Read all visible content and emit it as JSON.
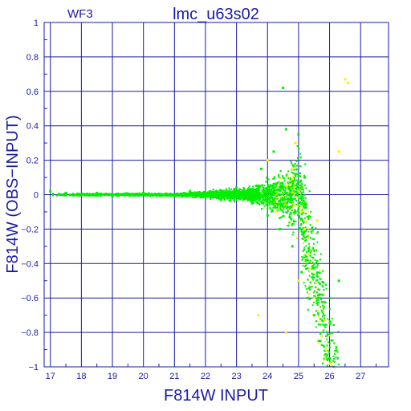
{
  "chart_data": {
    "type": "scatter",
    "title": "lmc_u63s02",
    "panel_label": "WF3",
    "xlabel": "F814W  INPUT",
    "ylabel": "F814W  (OBS−INPUT)",
    "xlim": [
      16.8,
      27.9
    ],
    "ylim": [
      -1,
      1
    ],
    "xticks": [
      "17",
      "18",
      "19",
      "20",
      "21",
      "22",
      "23",
      "24",
      "25",
      "26",
      "27"
    ],
    "yticks": [
      "1",
      "0.8",
      "0.6",
      "0.4",
      "0.2",
      "0",
      "−0.2",
      "−0.4",
      "−0.6",
      "−0.8",
      "−1"
    ],
    "grid": true,
    "series": [
      {
        "color": "#00ee00",
        "points": [
          [
            17.0,
            0.02
          ],
          [
            17.5,
            0.01
          ],
          [
            18.0,
            0.0
          ],
          [
            18.5,
            0.01
          ],
          [
            19.0,
            -0.01
          ],
          [
            19.5,
            0.0
          ],
          [
            20.0,
            0.01
          ],
          [
            20.5,
            0.0
          ],
          [
            21.0,
            -0.01
          ],
          [
            21.5,
            0.02
          ],
          [
            22.0,
            0.0
          ],
          [
            22.5,
            -0.03
          ],
          [
            23.0,
            0.04
          ],
          [
            23.5,
            -0.05
          ],
          [
            23.8,
            0.15
          ],
          [
            24.0,
            -0.12
          ],
          [
            24.2,
            0.25
          ],
          [
            24.4,
            -0.2
          ],
          [
            24.6,
            0.38
          ],
          [
            24.8,
            -0.3
          ],
          [
            25.0,
            0.35
          ],
          [
            25.1,
            -0.45
          ],
          [
            25.3,
            -0.6
          ],
          [
            25.5,
            -0.7
          ],
          [
            25.7,
            -0.85
          ],
          [
            26.0,
            -0.95
          ],
          [
            26.3,
            -0.5
          ],
          [
            24.5,
            0.62
          ],
          [
            25.2,
            0.1
          ],
          [
            24.9,
            -0.1
          ]
        ]
      },
      {
        "color": "#ffee00",
        "points": [
          [
            24.0,
            0.2
          ],
          [
            24.3,
            -0.1
          ],
          [
            24.6,
            0.05
          ],
          [
            24.8,
            0.15
          ],
          [
            25.0,
            0.02
          ],
          [
            25.1,
            -0.1
          ],
          [
            25.2,
            -0.2
          ],
          [
            25.3,
            -0.35
          ],
          [
            25.0,
            -0.5
          ],
          [
            25.5,
            -0.6
          ],
          [
            25.6,
            -0.15
          ],
          [
            26.3,
            0.25
          ],
          [
            26.5,
            0.67
          ],
          [
            26.6,
            0.65
          ],
          [
            23.7,
            -0.7
          ],
          [
            24.6,
            -0.8
          ],
          [
            25.9,
            -0.9
          ],
          [
            24.9,
            0.3
          ]
        ]
      }
    ]
  }
}
